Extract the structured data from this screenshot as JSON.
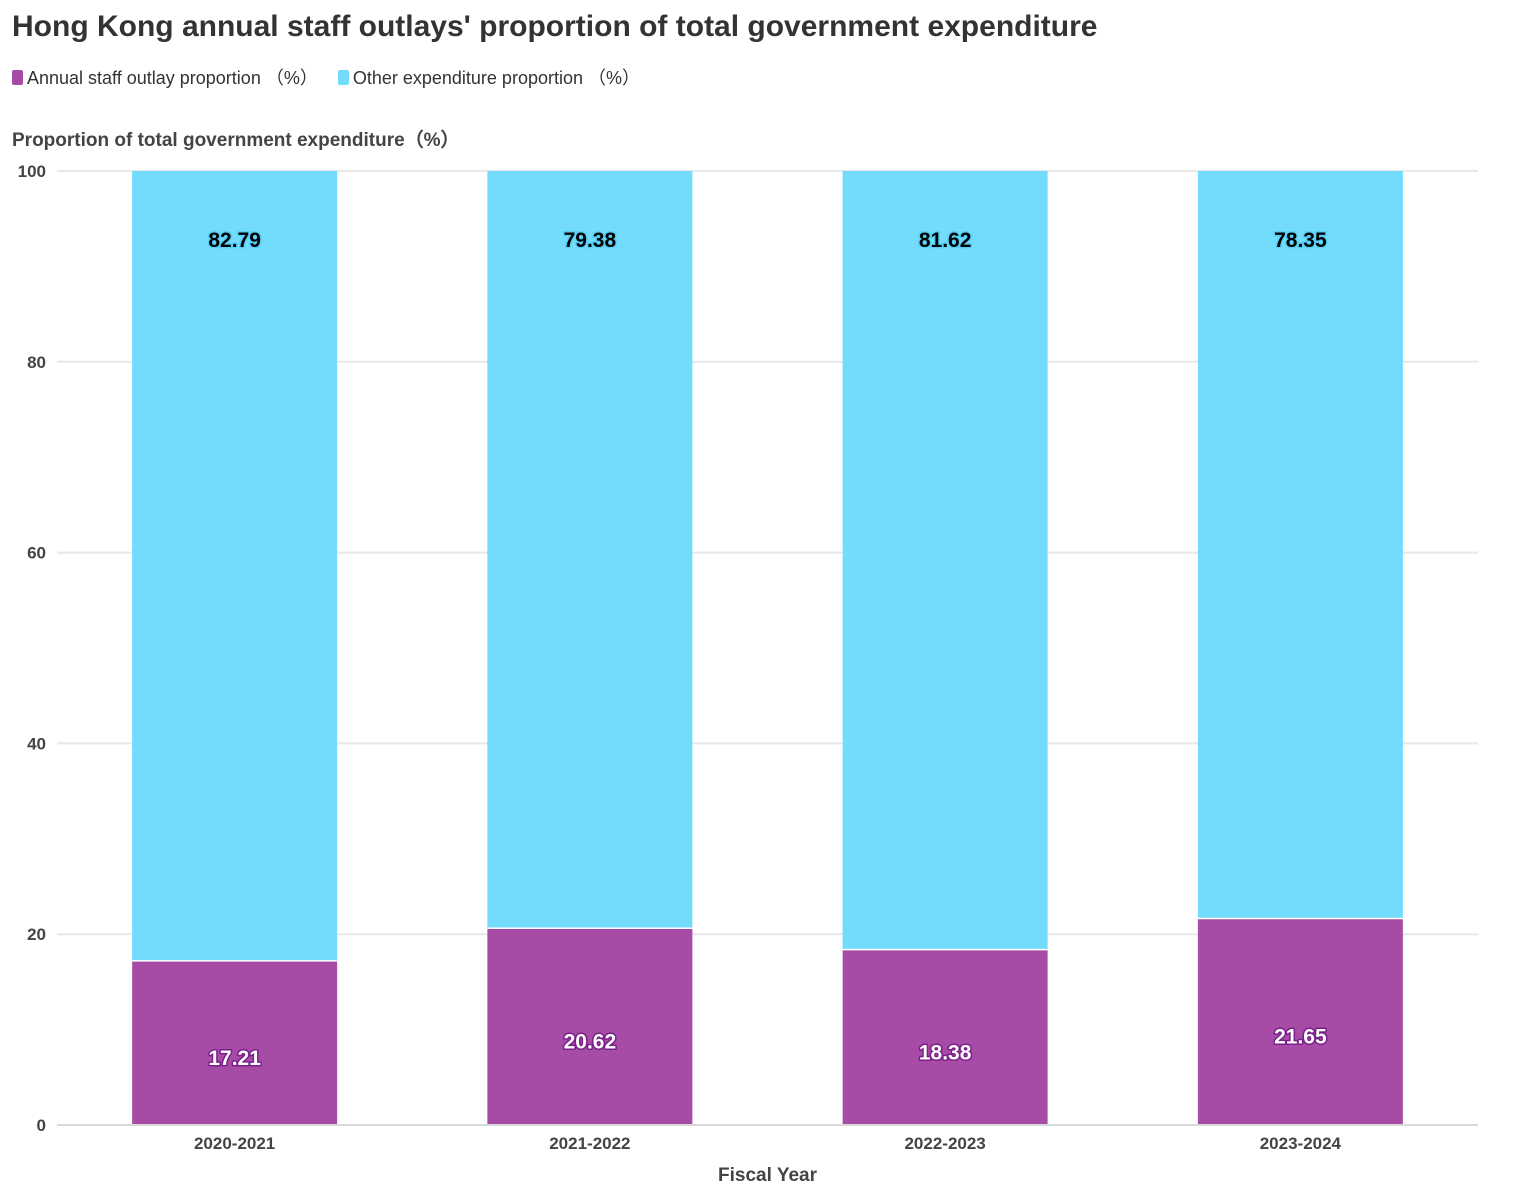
{
  "chart_data": {
    "type": "bar",
    "stacked": true,
    "title": "Hong Kong annual staff outlays' proportion of total government expenditure",
    "xlabel": "Fiscal Year",
    "ylabel": "Proportion of total government expenditure（%）",
    "ylim": [
      0,
      100
    ],
    "yticks": [
      0,
      20,
      40,
      60,
      80,
      100
    ],
    "grid": true,
    "legend_position": "top-left",
    "categories": [
      "2020-2021",
      "2021-2022",
      "2022-2023",
      "2023-2024"
    ],
    "series": [
      {
        "name": "Annual staff outlay proportion （%）",
        "color": "#a64ca6",
        "label_color": "#ffffff",
        "label_outline": "#7a1f8a",
        "values": [
          17.21,
          20.62,
          18.38,
          21.65
        ]
      },
      {
        "name": "Other expenditure proportion （%）",
        "color": "#73dbfb",
        "label_color": "#000000",
        "label_outline": "#55d0f8",
        "values": [
          82.79,
          79.38,
          81.62,
          78.35
        ]
      }
    ]
  }
}
